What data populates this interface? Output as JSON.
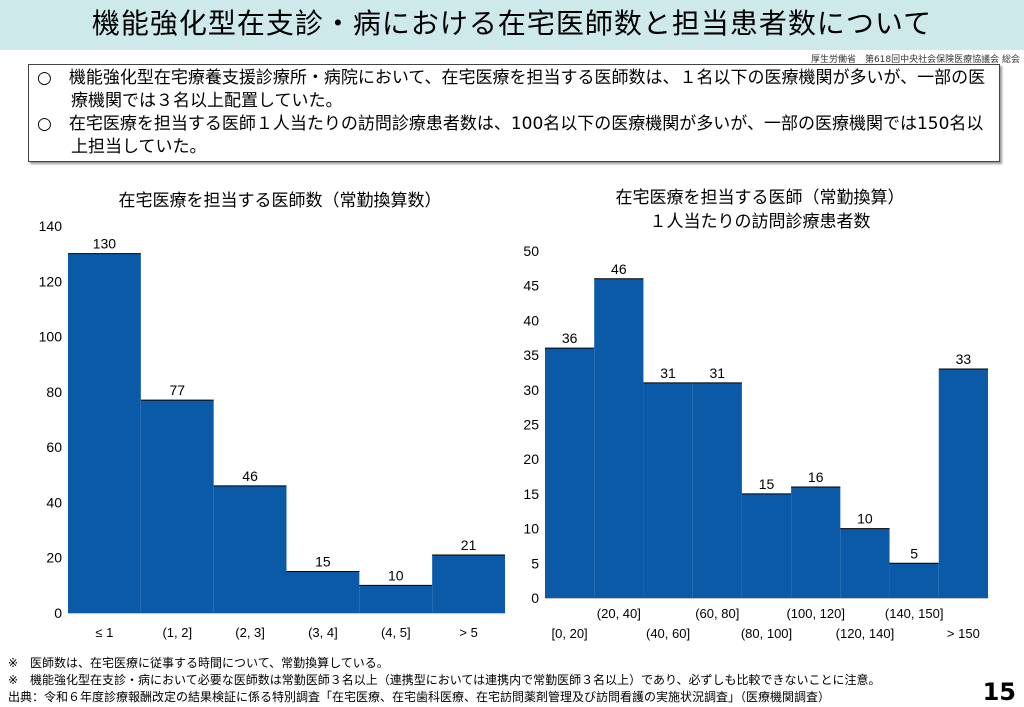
{
  "title": "機能強化型在支診・病における在宅医師数と担当患者数について",
  "source_top": "厚生労働省　第618回中央社会保険医療協議会 総会",
  "summary": [
    "○　機能強化型在宅療養支援診療所・病院において、在宅医療を担当する医師数は、１名以下の医療機関が多いが、一部の医療機関では３名以上配置していた。",
    "○　在宅医療を担当する医師１人当たりの訪問診療患者数は、100名以下の医療機関が多いが、一部の医療機関では150名以上担当していた。"
  ],
  "chart_data": [
    {
      "type": "bar",
      "title": "在宅医療を担当する医師数（常勤換算数）",
      "categories": [
        "≤ 1",
        "(1, 2]",
        "(2, 3]",
        "(3, 4]",
        "(4, 5]",
        "> 5"
      ],
      "values": [
        130,
        77,
        46,
        15,
        10,
        21
      ],
      "ylim": [
        0,
        140
      ],
      "yticks": [
        0,
        20,
        40,
        60,
        80,
        100,
        120,
        140
      ],
      "color": "#0b5aa8"
    },
    {
      "type": "bar",
      "title": "在宅医療を担当する医師（常勤換算）",
      "title2": "１人当たりの訪問診療患者数",
      "categories": [
        "[0, 20]",
        "(20, 40]",
        "(40, 60]",
        "(60, 80]",
        "(80, 100]",
        "(100, 120]",
        "(120, 140]",
        "(140, 150]",
        "> 150"
      ],
      "values": [
        36,
        46,
        31,
        31,
        15,
        16,
        10,
        5,
        33
      ],
      "ylim": [
        0,
        50
      ],
      "yticks": [
        0,
        5,
        10,
        15,
        20,
        25,
        30,
        35,
        40,
        45,
        50
      ],
      "color": "#0b5aa8"
    }
  ],
  "notes": [
    "※　医師数は、在宅医療に従事する時間について、常勤換算している。",
    "※　機能強化型在支診・病において必要な医師数は常勤医師３名以上（連携型においては連携内で常勤医師３名以上）であり、必ずしも比較できないことに注意。",
    "出典：令和６年度診療報酬改定の結果検証に係る特別調査「在宅医療、在宅歯科医療、在宅訪問薬剤管理及び訪問看護の実施状況調査」（医療機関調査）"
  ],
  "page_number": "15"
}
